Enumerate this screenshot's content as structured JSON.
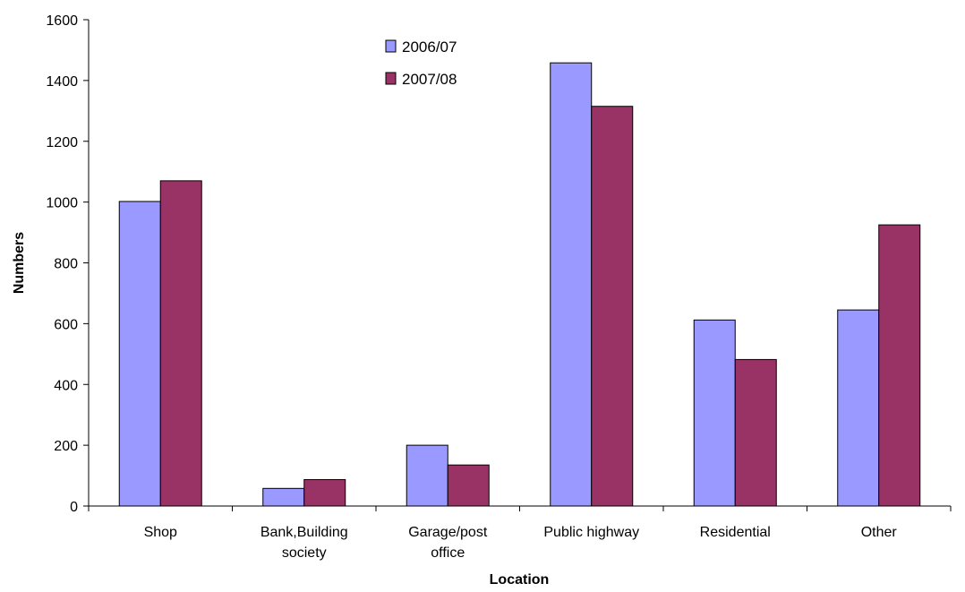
{
  "chart_data": {
    "type": "bar",
    "title": "",
    "xlabel": "Location",
    "ylabel": "Numbers",
    "ylim": [
      0,
      1600
    ],
    "yticks": [
      0,
      200,
      400,
      600,
      800,
      1000,
      1200,
      1400,
      1600
    ],
    "grid": false,
    "legend_position": "top-center",
    "categories": [
      [
        "Shop"
      ],
      [
        "Bank,Building",
        "society"
      ],
      [
        "Garage/post",
        "office"
      ],
      [
        "Public highway"
      ],
      [
        "Residential"
      ],
      [
        "Other"
      ]
    ],
    "series": [
      {
        "name": "2006/07",
        "color": "#9999ff",
        "values": [
          1002,
          58,
          200,
          1458,
          612,
          645
        ]
      },
      {
        "name": "2007/08",
        "color": "#993366",
        "values": [
          1070,
          87,
          135,
          1315,
          482,
          925
        ]
      }
    ]
  }
}
